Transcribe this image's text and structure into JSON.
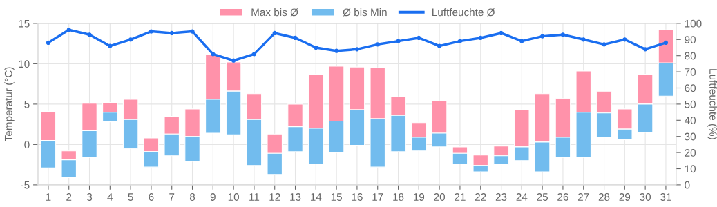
{
  "chart_data": {
    "type": "bar",
    "ylabel": "Temperatur (°C)",
    "y2label": "Luftfeuchte (%)",
    "categories": [
      "1",
      "2",
      "3",
      "4",
      "5",
      "6",
      "7",
      "8",
      "9",
      "10",
      "11",
      "12",
      "13",
      "14",
      "15",
      "16",
      "17",
      "18",
      "19",
      "20",
      "21",
      "22",
      "23",
      "24",
      "25",
      "26",
      "27",
      "28",
      "29",
      "30",
      "31"
    ],
    "series": [
      {
        "name": "Max bis Ø",
        "color": "#ff92aa",
        "values": [
          3.6,
          1.1,
          3.4,
          1.2,
          2.5,
          1.7,
          2.2,
          3.4,
          5.6,
          3.6,
          3.2,
          2.4,
          2.8,
          6.7,
          6.8,
          5.3,
          6.3,
          2.3,
          1.8,
          4.0,
          0.8,
          1.3,
          1.2,
          4.6,
          6.0,
          4.8,
          5.1,
          2.7,
          2.5,
          3.7,
          4.1
        ],
        "base": [
          0.5,
          -1.9,
          1.7,
          4.0,
          3.1,
          -0.9,
          1.3,
          1.0,
          5.6,
          6.6,
          3.1,
          -1.1,
          2.2,
          2.0,
          2.9,
          4.3,
          3.2,
          3.6,
          0.9,
          1.4,
          -1.1,
          -2.6,
          -1.4,
          -0.3,
          0.3,
          0.9,
          4.0,
          3.9,
          1.9,
          5.0,
          10.1
        ]
      },
      {
        "name": "Ø bis Min",
        "color": "#72bcee",
        "values": [
          3.4,
          2.2,
          3.3,
          1.2,
          3.6,
          1.9,
          2.7,
          3.1,
          4.2,
          5.4,
          5.7,
          2.6,
          3.1,
          4.4,
          3.9,
          4.4,
          6.0,
          4.5,
          1.7,
          1.7,
          1.3,
          0.8,
          1.1,
          1.7,
          3.7,
          2.5,
          5.6,
          3.0,
          1.3,
          3.5,
          4.1
        ],
        "base": [
          -2.9,
          -4.1,
          -1.6,
          2.8,
          -0.5,
          -2.8,
          -1.4,
          -2.1,
          1.4,
          1.2,
          -2.6,
          -3.7,
          -0.9,
          -2.4,
          -1.0,
          -0.1,
          -2.8,
          -0.9,
          -0.8,
          -0.3,
          -2.4,
          -3.4,
          -2.5,
          -2.0,
          -3.4,
          -1.6,
          -1.6,
          0.9,
          0.6,
          1.5,
          6.0
        ]
      },
      {
        "name": "Luftfeuchte Ø",
        "type": "line",
        "axis": "y2",
        "color": "#1a6ef0",
        "marker": "circle",
        "values": [
          88,
          96,
          93,
          86,
          90,
          95,
          94,
          95,
          81,
          77,
          81,
          94,
          91,
          85,
          83,
          84,
          87,
          89,
          91,
          86,
          89,
          91,
          94,
          89,
          92,
          93,
          90,
          87,
          90,
          84,
          88
        ]
      }
    ],
    "ylim": [
      -5,
      15
    ],
    "yticks": [
      -5,
      0,
      5,
      10,
      15
    ],
    "y2lim": [
      0,
      100
    ],
    "y2ticks": [
      0,
      10,
      20,
      30,
      40,
      50,
      60,
      70,
      80,
      90,
      100
    ],
    "grid": true,
    "legend": "top"
  }
}
